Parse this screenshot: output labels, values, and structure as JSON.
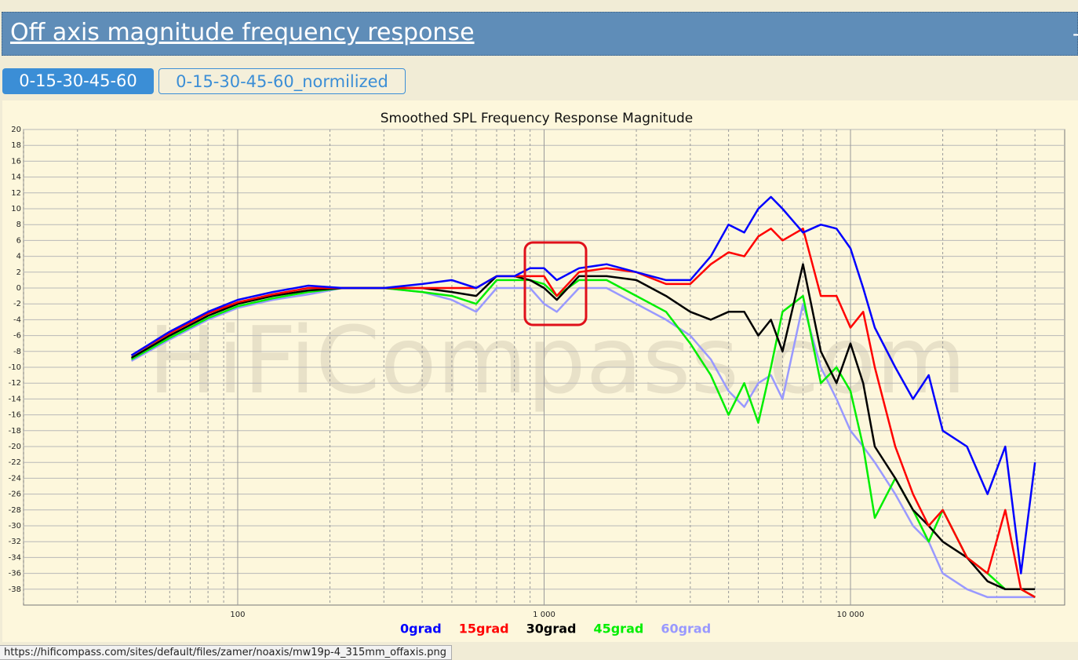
{
  "header": {
    "title": "Off axis magnitude frequency response",
    "toggle": "-"
  },
  "tabs": [
    "0-15-30-45-60",
    "0-15-30-45-60_normilized"
  ],
  "status_bar": "https://hificompass.com/sites/default/files/zamer/noaxis/mw19p-4_315mm_offaxis.png",
  "watermark": "HiFiCompass.com",
  "chart_data": {
    "type": "line",
    "title": "Smoothed SPL Frequency Response Magnitude",
    "x": [
      45,
      60,
      80,
      100,
      130,
      170,
      220,
      300,
      400,
      500,
      600,
      700,
      800,
      900,
      1000,
      1100,
      1300,
      1600,
      2000,
      2500,
      3000,
      3500,
      4000,
      4500,
      5000,
      5500,
      6000,
      7000,
      8000,
      9000,
      10000,
      11000,
      12000,
      14000,
      16000,
      18000,
      20000,
      24000,
      28000,
      32000,
      36000,
      40000
    ],
    "series": [
      {
        "name": "0grad",
        "color": "#0000ff",
        "values": [
          -8.5,
          -5.5,
          -3,
          -1.5,
          -0.5,
          0.3,
          0,
          0,
          0.5,
          1,
          0,
          1.5,
          1.5,
          2.5,
          2.5,
          1,
          2.5,
          3,
          2,
          1,
          1,
          4,
          8,
          7,
          10,
          11.5,
          10,
          7,
          8,
          7.5,
          5,
          0,
          -5,
          -10,
          -14,
          -11,
          -18,
          -20,
          -26,
          -20,
          -36,
          -22
        ]
      },
      {
        "name": "15grad",
        "color": "#ff0000",
        "values": [
          -8.5,
          -5.7,
          -3.2,
          -1.8,
          -0.8,
          0,
          0,
          0,
          0,
          0,
          0,
          1.5,
          1.5,
          1.5,
          1.5,
          -1,
          2,
          2.5,
          2,
          0.5,
          0.5,
          3,
          4.5,
          4,
          6.5,
          7.5,
          6,
          7.5,
          -1,
          -1,
          -5,
          -3,
          -10,
          -20,
          -26,
          -30,
          -28,
          -34,
          -36,
          -28,
          -38,
          -39
        ]
      },
      {
        "name": "30grad",
        "color": "#000000",
        "values": [
          -8.8,
          -6,
          -3.5,
          -2,
          -1,
          -0.3,
          0,
          0,
          0,
          -0.5,
          -1,
          1.5,
          1.5,
          1,
          0,
          -1.5,
          1.5,
          1.5,
          1,
          -1,
          -3,
          -4,
          -3,
          -3,
          -6,
          -4,
          -8,
          3,
          -8,
          -12,
          -7,
          -12,
          -20,
          -24,
          -28,
          -30,
          -32,
          -34,
          -37,
          -38,
          -38,
          -38
        ]
      },
      {
        "name": "45grad",
        "color": "#00ee00",
        "values": [
          -9,
          -6.3,
          -3.8,
          -2.3,
          -1.3,
          -0.5,
          0,
          0,
          -0.5,
          -1,
          -2,
          1,
          1,
          1,
          0.5,
          -1,
          1,
          1,
          -1,
          -3,
          -7,
          -11,
          -16,
          -12,
          -17,
          -10,
          -3,
          -1,
          -12,
          -10,
          -13,
          -20,
          -29,
          -24,
          -28,
          -32,
          -28,
          -34,
          -36,
          -38,
          -38,
          -39
        ]
      },
      {
        "name": "60grad",
        "color": "#9999ff",
        "values": [
          -9.2,
          -6.5,
          -4,
          -2.5,
          -1.5,
          -0.8,
          0,
          0,
          -0.5,
          -1.5,
          -3,
          0,
          0,
          0,
          -2,
          -3,
          0,
          0,
          -2,
          -4,
          -6,
          -9,
          -13,
          -15,
          -12,
          -11,
          -14,
          -2,
          -10,
          -14,
          -18,
          -20,
          -22,
          -26,
          -30,
          -32,
          -36,
          -38,
          -39,
          -39,
          -39,
          -39
        ]
      }
    ],
    "log_x": true,
    "xlim": [
      20,
      50000
    ],
    "xticks": [
      100,
      {
        "value": 1000,
        "label": "1 000"
      },
      {
        "value": 10000,
        "label": "10 000"
      }
    ],
    "xminorticks": [
      20,
      30,
      40,
      50,
      60,
      70,
      80,
      90,
      200,
      300,
      400,
      500,
      600,
      700,
      800,
      900,
      2000,
      3000,
      4000,
      5000,
      6000,
      7000,
      8000,
      9000,
      20000,
      30000,
      40000
    ],
    "ylim": [
      -40,
      20
    ],
    "yticks": [
      -38,
      -36,
      -34,
      -32,
      -30,
      -28,
      -26,
      -24,
      -22,
      -20,
      -18,
      -16,
      -14,
      -12,
      -10,
      -8,
      -6,
      -4,
      -2,
      0,
      2,
      4,
      6,
      8,
      10,
      12,
      14,
      16,
      18,
      20
    ],
    "grid": true
  }
}
